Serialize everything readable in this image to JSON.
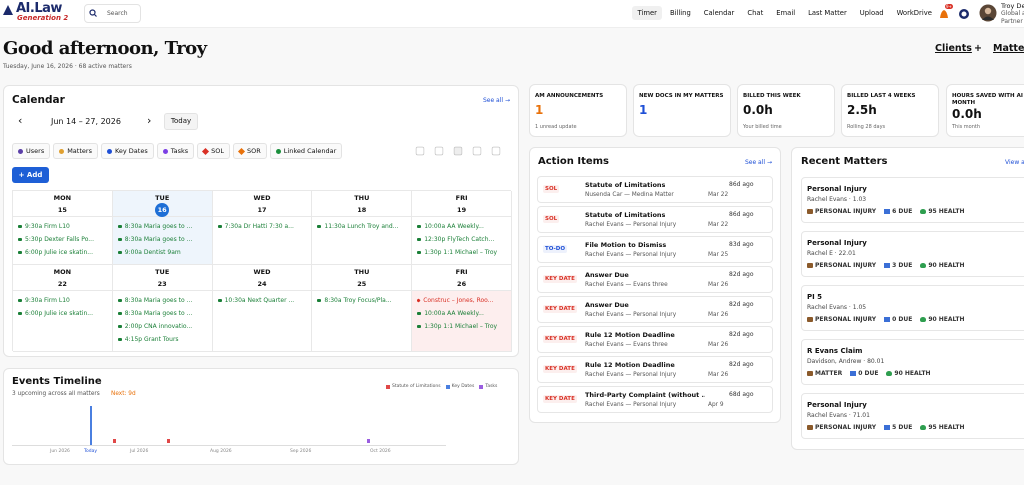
{
  "nav": {
    "logo": "AI.Law",
    "logo_sub": "Generation 2",
    "search": "Search",
    "links": [
      "Timer",
      "Billing",
      "Calendar",
      "Chat",
      "Email",
      "Last Matter",
      "Upload",
      "WorkDrive"
    ],
    "badge": "9+",
    "user_name": "Troy De",
    "user_role": "Global a",
    "user_title": "Partner"
  },
  "greeting": {
    "title": "Good afternoon, Troy",
    "subtitle": "Tuesday, June 16, 2026 · 68 active matters"
  },
  "tabs": [
    "Clients",
    "+",
    "Matter"
  ],
  "calendar": {
    "title": "Calendar",
    "see_all": "See all →",
    "prev": "‹",
    "range": "Jun 14 – 27, 2026",
    "next": "›",
    "today": "Today",
    "filters": [
      {
        "label": "Users",
        "color": "#5b3fa8"
      },
      {
        "label": "Matters",
        "color": "#e0a030"
      },
      {
        "label": "Key Dates",
        "color": "#1e4fd6"
      },
      {
        "label": "Tasks",
        "color": "#7b3fe4"
      },
      {
        "label": "SOL",
        "color": "#d93025"
      },
      {
        "label": "SOR",
        "color": "#e8710a"
      },
      {
        "label": "Linked Calendar",
        "color": "#1a8f3c"
      }
    ],
    "add": "+ Add",
    "weeks": [
      {
        "days": [
          {
            "dow": "MON",
            "date": "15",
            "events": [
              {
                "text": "9:30a Firm L10",
                "color": "#1a7f37"
              },
              {
                "text": "5:30p Dexter Falls Po...",
                "color": "#1a7f37"
              },
              {
                "text": "6:00p Julie ice skatin...",
                "color": "#1a7f37"
              }
            ]
          },
          {
            "dow": "TUE",
            "date": "16",
            "events": [
              {
                "text": "8:30a Maria goes to ...",
                "color": "#1a7f37"
              },
              {
                "text": "8:30a Maria goes to ...",
                "color": "#1a7f37"
              },
              {
                "text": "9:00a Dentist 9am",
                "color": "#1a7f37"
              }
            ]
          },
          {
            "dow": "WED",
            "date": "17",
            "events": [
              {
                "text": "7:30a Dr Hatti 7:30 a...",
                "color": "#1a7f37"
              }
            ]
          },
          {
            "dow": "THU",
            "date": "18",
            "events": [
              {
                "text": "11:30a Lunch Troy and...",
                "color": "#1a7f37"
              }
            ]
          },
          {
            "dow": "FRI",
            "date": "19",
            "events": [
              {
                "text": "10:00a AA Weekly...",
                "color": "#1a7f37"
              },
              {
                "text": "12:30p FlyTech Catch...",
                "color": "#1a7f37"
              },
              {
                "text": "1:30p 1:1 Michael – Troy",
                "color": "#1a7f37"
              }
            ]
          }
        ]
      },
      {
        "days": [
          {
            "dow": "MON",
            "date": "22",
            "events": [
              {
                "text": "9:30a Firm L10",
                "color": "#1a7f37"
              },
              {
                "text": "6:00p Julie ice skatin...",
                "color": "#1a7f37"
              }
            ]
          },
          {
            "dow": "TUE",
            "date": "23",
            "events": [
              {
                "text": "8:30a Maria goes to ...",
                "color": "#1a7f37"
              },
              {
                "text": "8:30a Maria goes to ...",
                "color": "#1a7f37"
              },
              {
                "text": "2:00p CNA innovatio...",
                "color": "#1a7f37"
              },
              {
                "text": "4:15p Grant Tours",
                "color": "#1a7f37"
              }
            ]
          },
          {
            "dow": "WED",
            "date": "24",
            "events": [
              {
                "text": "10:30a Next Quarter ...",
                "color": "#1a7f37"
              }
            ]
          },
          {
            "dow": "THU",
            "date": "25",
            "events": [
              {
                "text": "8:30a Troy Focus/Pla...",
                "color": "#1a7f37"
              }
            ]
          },
          {
            "dow": "FRI",
            "date": "26",
            "events": [
              {
                "text": "Construc – Jones, Roo...",
                "color": "#d93025"
              },
              {
                "text": "10:00a AA Weekly...",
                "color": "#1a7f37"
              },
              {
                "text": "1:30p 1:1 Michael – Troy",
                "color": "#1a7f37"
              }
            ]
          }
        ]
      }
    ]
  },
  "stats": [
    {
      "label": "AM ANNOUNCEMENTS",
      "value": "1",
      "sub": "1 unread update",
      "color": "#e8710a"
    },
    {
      "label": "NEW DOCS IN MY MATTERS",
      "value": "1",
      "color": "#1e4fd6"
    },
    {
      "label": "BILLED THIS WEEK",
      "value": "0.0h",
      "sub": "Your billed time",
      "color": "#111111"
    },
    {
      "label": "BILLED LAST 4 WEEKS",
      "value": "2.5h",
      "sub": "Rolling 28 days",
      "color": "#111111"
    },
    {
      "label": "HOURS SAVED WITH AI THIS MONTH",
      "value": "0.0h",
      "sub": "This month",
      "color": "#111111"
    }
  ],
  "action_items": {
    "title": "Action Items",
    "see_all": "See all →",
    "items": [
      {
        "tag": "SOL",
        "color": "#d93025",
        "title": "Statute of Limitations",
        "sub": "Nusenda Car — Medina Matter",
        "age": "86d ago",
        "date": "Mar 22"
      },
      {
        "tag": "SOL",
        "color": "#d93025",
        "title": "Statute of Limitations",
        "sub": "Rachel Evans — Personal Injury",
        "age": "86d ago",
        "date": "Mar 22"
      },
      {
        "tag": "TO-DO",
        "color": "#1e4fd6",
        "title": "File Motion to Dismiss",
        "sub": "Rachel Evans — Personal Injury",
        "age": "83d ago",
        "date": "Mar 25"
      },
      {
        "tag": "KEY DATE",
        "color": "#d93025",
        "title": "Answer Due",
        "sub": "Rachel Evans — Evans three",
        "age": "82d ago",
        "date": "Mar 26"
      },
      {
        "tag": "KEY DATE",
        "color": "#d93025",
        "title": "Answer Due",
        "sub": "Rachel Evans — Personal Injury",
        "age": "82d ago",
        "date": "Mar 26"
      },
      {
        "tag": "KEY DATE",
        "color": "#d93025",
        "title": "Rule 12 Motion Deadline",
        "sub": "Rachel Evans — Evans three",
        "age": "82d ago",
        "date": "Mar 26"
      },
      {
        "tag": "KEY DATE",
        "color": "#d93025",
        "title": "Rule 12 Motion Deadline",
        "sub": "Rachel Evans — Personal Injury",
        "age": "82d ago",
        "date": "Mar 26"
      },
      {
        "tag": "KEY DATE",
        "color": "#d93025",
        "title": "Third-Party Complaint (without ...",
        "sub": "Rachel Evans — Personal Injury",
        "age": "68d ago",
        "date": "Apr 9"
      }
    ]
  },
  "recent_matters": {
    "title": "Recent Matters",
    "view_all": "View a",
    "items": [
      {
        "title": "Personal Injury",
        "sub": "Rachel Evans · 1.03",
        "type": "PERSONAL INJURY",
        "due": "6 DUE",
        "health": "95 HEALTH"
      },
      {
        "title": "Personal Injury",
        "sub": "Rachel E · 22.01",
        "type": "PERSONAL INJURY",
        "due": "3 DUE",
        "health": "90 HEALTH"
      },
      {
        "title": "PI 5",
        "sub": "Rachel Evans · 1.05",
        "type": "PERSONAL INJURY",
        "due": "0 DUE",
        "health": "90 HEALTH"
      },
      {
        "title": "R Evans Claim",
        "sub": "Davidson, Andrew · 80.01",
        "type": "MATTER",
        "due": "0 DUE",
        "health": "90 HEALTH"
      },
      {
        "title": "Personal Injury",
        "sub": "Rachel Evans · 71.01",
        "type": "PERSONAL INJURY",
        "due": "5 DUE",
        "health": "95 HEALTH"
      }
    ]
  },
  "timeline": {
    "title": "Events Timeline",
    "subtitle": "3 upcoming across all matters",
    "next": "Next: 9d",
    "legend": [
      {
        "name": "Statute of Limitations",
        "color": "#e04848"
      },
      {
        "name": "Key Dates",
        "color": "#4a7fe0"
      },
      {
        "name": "Tasks",
        "color": "#9a5ee0"
      }
    ],
    "axis": [
      "Jun 2026",
      "Today",
      "Jul 2026",
      "Aug 2026",
      "Sep 2026",
      "Oct 2026"
    ]
  }
}
